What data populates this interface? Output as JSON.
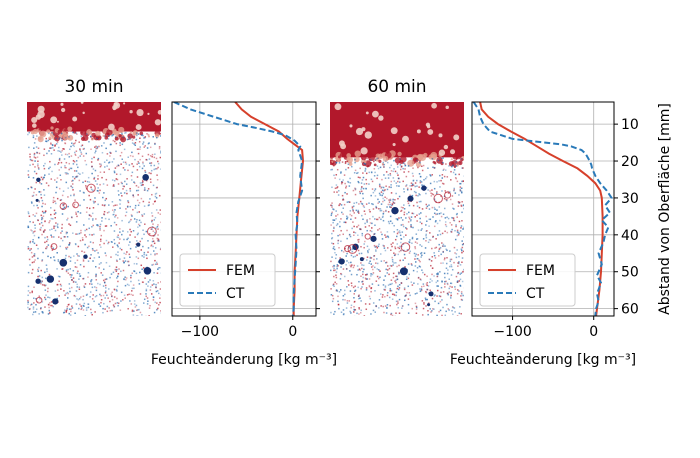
{
  "chart_data": [
    {
      "type": "image",
      "title": "30 min",
      "description_colors": {
        "wet_positive": "#b2182b",
        "negative": "#2166ac",
        "neutral": "#ffffff"
      },
      "saturated_depth_mm": [
        4,
        12
      ]
    },
    {
      "type": "line",
      "title": "",
      "xlabel": "Feuchteänderung [kg m⁻³]",
      "ylabel": "",
      "xlim": [
        -130,
        25
      ],
      "ylim": [
        62,
        4
      ],
      "y_inverted": true,
      "xticks": [
        -100,
        0
      ],
      "yticks": [
        10,
        20,
        30,
        40,
        50,
        60
      ],
      "grid": true,
      "legend": {
        "position": "lower-left",
        "entries": [
          "FEM",
          "CT"
        ]
      },
      "series": [
        {
          "name": "FEM",
          "style": "solid",
          "color": "#d6402b",
          "points": [
            [
              -62,
              4
            ],
            [
              -55,
              6
            ],
            [
              -45,
              8
            ],
            [
              -30,
              10
            ],
            [
              -15,
              12
            ],
            [
              -6,
              14
            ],
            [
              2,
              15.5
            ],
            [
              10,
              17
            ],
            [
              11,
              20
            ],
            [
              9,
              25
            ],
            [
              7,
              30
            ],
            [
              5,
              35
            ],
            [
              4,
              40
            ],
            [
              3,
              45
            ],
            [
              2,
              50
            ],
            [
              2,
              55
            ],
            [
              1,
              60
            ],
            [
              1,
              62
            ]
          ]
        },
        {
          "name": "CT",
          "style": "dashed",
          "color": "#2a7ab9",
          "points": [
            [
              -128,
              4
            ],
            [
              -110,
              6
            ],
            [
              -85,
              8
            ],
            [
              -60,
              10
            ],
            [
              -40,
              11
            ],
            [
              -22,
              12
            ],
            [
              -8,
              13
            ],
            [
              2,
              14.5
            ],
            [
              8,
              16
            ],
            [
              6,
              17
            ],
            [
              10,
              20
            ],
            [
              8,
              24
            ],
            [
              10,
              28
            ],
            [
              6,
              31
            ],
            [
              4,
              34
            ],
            [
              5,
              37
            ],
            [
              3,
              40
            ],
            [
              4,
              44
            ],
            [
              3,
              48
            ],
            [
              2,
              52
            ],
            [
              1,
              56
            ],
            [
              1,
              60
            ],
            [
              0,
              62
            ]
          ]
        }
      ]
    },
    {
      "type": "image",
      "title": "60 min",
      "description_colors": {
        "wet_positive": "#b2182b",
        "negative": "#2166ac",
        "neutral": "#ffffff"
      },
      "saturated_depth_mm": [
        4,
        19
      ]
    },
    {
      "type": "line",
      "title": "",
      "xlabel": "Feuchteänderung [kg m⁻³]",
      "ylabel": "Abstand von Oberfläche [mm]",
      "xlim": [
        -150,
        25
      ],
      "ylim": [
        62,
        4
      ],
      "y_inverted": true,
      "xticks": [
        -100,
        0
      ],
      "yticks": [
        10,
        20,
        30,
        40,
        50,
        60
      ],
      "grid": true,
      "legend": {
        "position": "lower-left",
        "entries": [
          "FEM",
          "CT"
        ]
      },
      "series": [
        {
          "name": "FEM",
          "style": "solid",
          "color": "#d6402b",
          "points": [
            [
              -140,
              4
            ],
            [
              -138,
              6
            ],
            [
              -130,
              8
            ],
            [
              -118,
              10
            ],
            [
              -102,
              12
            ],
            [
              -85,
              14
            ],
            [
              -70,
              16
            ],
            [
              -55,
              18
            ],
            [
              -38,
              20
            ],
            [
              -20,
              22
            ],
            [
              -8,
              24
            ],
            [
              2,
              26
            ],
            [
              8,
              28
            ],
            [
              10,
              30
            ],
            [
              11,
              35
            ],
            [
              11,
              40
            ],
            [
              10,
              45
            ],
            [
              9,
              50
            ],
            [
              7,
              55
            ],
            [
              4,
              60
            ],
            [
              3,
              62
            ]
          ]
        },
        {
          "name": "CT",
          "style": "dashed",
          "color": "#2a7ab9",
          "points": [
            [
              -148,
              4
            ],
            [
              -142,
              6
            ],
            [
              -140,
              8
            ],
            [
              -136,
              10
            ],
            [
              -128,
              12
            ],
            [
              -100,
              14
            ],
            [
              -40,
              15.5
            ],
            [
              -28,
              16
            ],
            [
              -15,
              17
            ],
            [
              -10,
              18
            ],
            [
              -5,
              20
            ],
            [
              -3,
              21
            ],
            [
              -2,
              22
            ],
            [
              2,
              24
            ],
            [
              8,
              26
            ],
            [
              16,
              28
            ],
            [
              22,
              30
            ],
            [
              14,
              32
            ],
            [
              20,
              34
            ],
            [
              10,
              36
            ],
            [
              18,
              38
            ],
            [
              14,
              40
            ],
            [
              12,
              42
            ],
            [
              6,
              45
            ],
            [
              10,
              48
            ],
            [
              4,
              51
            ],
            [
              9,
              53
            ],
            [
              4,
              56
            ],
            [
              6,
              58
            ],
            [
              3,
              60
            ],
            [
              2,
              62
            ]
          ]
        }
      ]
    }
  ],
  "labels": {
    "title_30": "30 min",
    "title_60": "60 min",
    "xlabel_left": "Feuchteänderung [kg m⁻³]",
    "xlabel_right": "Feuchteänderung [kg m⁻³]",
    "ylabel_right": "Abstand von Oberfläche [mm]",
    "legend_fem": "FEM",
    "legend_ct": "CT"
  }
}
